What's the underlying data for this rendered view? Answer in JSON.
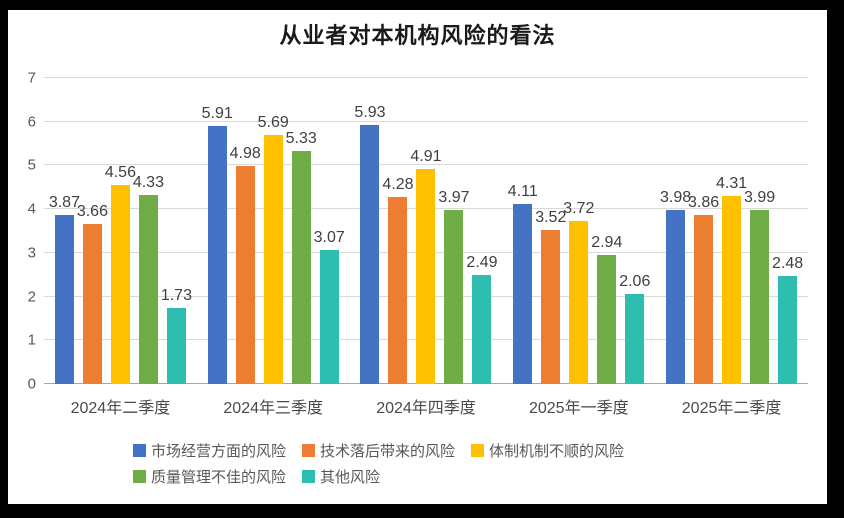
{
  "frame": {
    "border_color": "#000000",
    "background": "#ffffff"
  },
  "chart_data": {
    "type": "bar",
    "title": "从业者对本机构风险的看法",
    "categories": [
      "2024年二季度",
      "2024年三季度",
      "2024年四季度",
      "2025年一季度",
      "2025年二季度"
    ],
    "series": [
      {
        "name": "市场经营方面的风险",
        "color": "#4472C4",
        "values": [
          3.87,
          5.91,
          5.93,
          4.11,
          3.98
        ]
      },
      {
        "name": "技术落后带来的风险",
        "color": "#ED7D31",
        "values": [
          3.66,
          4.98,
          4.28,
          3.52,
          3.86
        ]
      },
      {
        "name": "体制机制不顺的风险",
        "color": "#FFC000",
        "values": [
          4.56,
          5.69,
          4.91,
          3.72,
          4.31
        ]
      },
      {
        "name": "质量管理不佳的风险",
        "color": "#70AD47",
        "values": [
          4.33,
          5.33,
          3.97,
          2.94,
          3.99
        ]
      },
      {
        "name": "其他风险",
        "color": "#2DBEAF",
        "values": [
          1.73,
          3.07,
          2.49,
          2.06,
          2.48
        ]
      }
    ],
    "ylim": [
      0,
      7
    ],
    "yticks": [
      0,
      1,
      2,
      3,
      4,
      5,
      6,
      7
    ],
    "grid": true,
    "data_labels": true,
    "label_decimals": 2,
    "legend_position": "bottom",
    "legend_rows": [
      [
        0,
        1,
        2
      ],
      [
        3,
        4
      ]
    ],
    "gridline_color": "#dadada",
    "axisline_color": "#a6a6a6"
  }
}
